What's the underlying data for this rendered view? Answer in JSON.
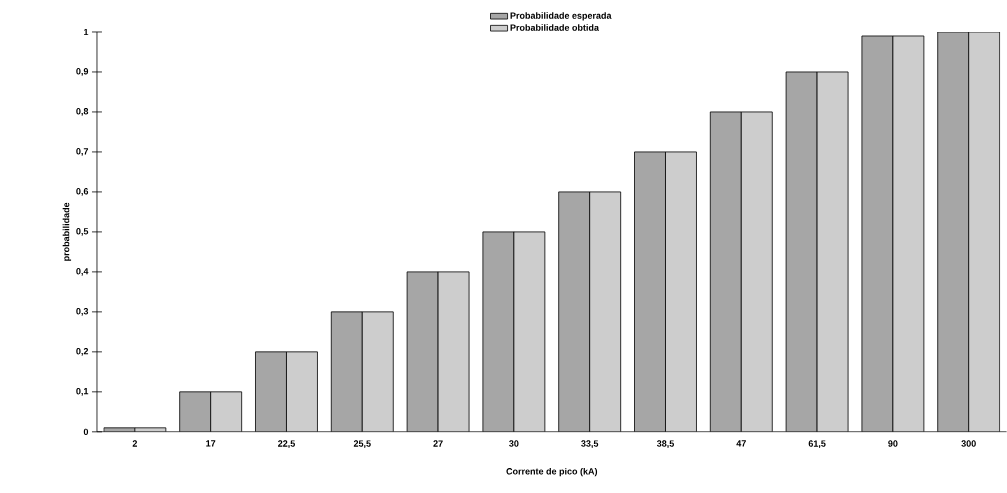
{
  "chart_data": {
    "type": "bar",
    "xlabel": "Corrente de pico (kA)",
    "ylabel": "probabilidade",
    "categories": [
      "2",
      "17",
      "22,5",
      "25,5",
      "27",
      "30",
      "33,5",
      "38,5",
      "47",
      "61,5",
      "90",
      "300"
    ],
    "series": [
      {
        "name": "Probabilidade esperada",
        "color": "#a6a6a6",
        "values": [
          0.01,
          0.1,
          0.2,
          0.3,
          0.4,
          0.5,
          0.6,
          0.7,
          0.8,
          0.9,
          0.99,
          1.0
        ]
      },
      {
        "name": "Probabilidade obtida",
        "color": "#cdcdcd",
        "values": [
          0.01,
          0.1,
          0.2,
          0.3,
          0.4,
          0.5,
          0.6,
          0.7,
          0.8,
          0.9,
          0.99,
          1.0
        ]
      }
    ],
    "ylim": [
      0,
      1
    ],
    "yticks": [
      0,
      {
        "value": 0.1,
        "label": "0,1"
      },
      {
        "value": 0.2,
        "label": "0,2"
      },
      {
        "value": 0.3,
        "label": "0,3"
      },
      {
        "value": 0.4,
        "label": "0,4"
      },
      {
        "value": 0.5,
        "label": "0,5"
      },
      {
        "value": 0.6,
        "label": "0,6"
      },
      {
        "value": 0.7,
        "label": "0,7"
      },
      {
        "value": 0.8,
        "label": "0,8"
      },
      {
        "value": 0.9,
        "label": "0,9"
      },
      1
    ],
    "legend": "top"
  }
}
